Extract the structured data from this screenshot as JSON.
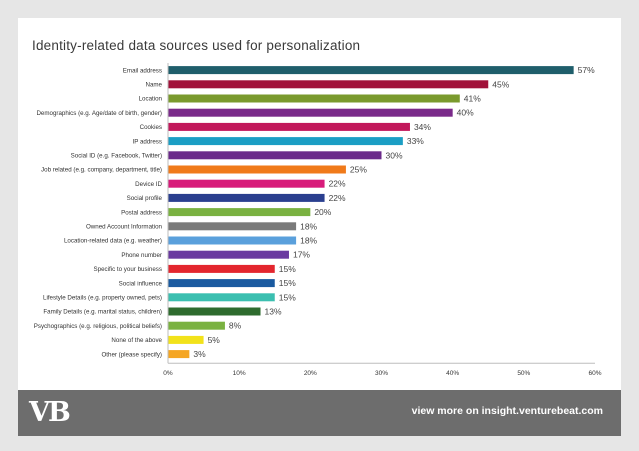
{
  "chart_data": {
    "type": "bar",
    "orientation": "horizontal",
    "title": "Identity-related data sources used for personalization",
    "categories": [
      "Email address",
      "Name",
      "Location",
      "Demographics (e.g. Age/date of birth, gender)",
      "Cookies",
      "IP address",
      "Social ID (e.g. Facebook, Twitter)",
      "Job related (e.g. company, department, title)",
      "Device ID",
      "Social profile",
      "Postal address",
      "Owned Account Information",
      "Location-related data (e.g. weather)",
      "Phone number",
      "Specific to your business",
      "Social influence",
      "Lifestyle Details (e.g. property owned, pets)",
      "Family Details (e.g. marital status, children)",
      "Psychographics (e.g. religious, political beliefs)",
      "None of the above",
      "Other (please specify)"
    ],
    "values": [
      57,
      45,
      41,
      40,
      34,
      33,
      30,
      25,
      22,
      22,
      20,
      18,
      18,
      17,
      15,
      15,
      15,
      13,
      8,
      5,
      3
    ],
    "value_labels": [
      "57%",
      "45%",
      "41%",
      "40%",
      "34%",
      "33%",
      "30%",
      "25%",
      "22%",
      "22%",
      "20%",
      "18%",
      "18%",
      "17%",
      "15%",
      "15%",
      "15%",
      "13%",
      "8%",
      "5%",
      "3%"
    ],
    "colors": [
      "#1f5e6b",
      "#a1123a",
      "#7a9a2e",
      "#7a2a8a",
      "#c2185b",
      "#1b9ec4",
      "#6b2a8a",
      "#f07a1a",
      "#d81b7a",
      "#2a3f8f",
      "#7ab241",
      "#7a7a7a",
      "#5aa0dc",
      "#6a3aa0",
      "#e3262e",
      "#1a5aa0",
      "#3bbfb0",
      "#2e6b2e",
      "#7ab241",
      "#f2e21a",
      "#f5a623"
    ],
    "xticks": [
      "0%",
      "10%",
      "20%",
      "30%",
      "40%",
      "50%",
      "60%"
    ],
    "xlim": [
      0,
      60
    ],
    "grid": false,
    "legend": "none"
  },
  "footer": {
    "logo": "VB",
    "link": "view more on insight.venturebeat.com"
  },
  "colors": {
    "background": "#e6e6e6",
    "card": "#ffffff",
    "footer": "#6d6d6d"
  }
}
